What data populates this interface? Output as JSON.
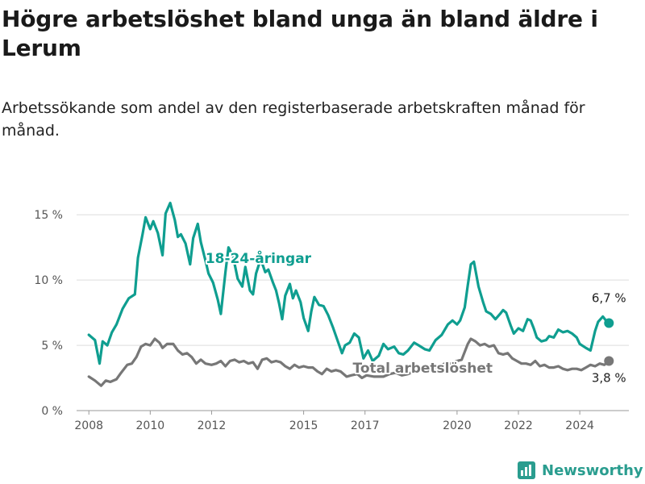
{
  "header": {
    "title": "Högre arbetslöshet bland unga än bland äldre i Lerum",
    "subtitle": "Arbetssökande som andel av den registerbaserade arbetskraften månad för månad."
  },
  "colors": {
    "youth": "#0f9e90",
    "total": "#777777",
    "grid": "#dddddd",
    "axis": "#555555"
  },
  "logo": {
    "text": "Newsworthy",
    "icon": "bar-chart-icon"
  },
  "chart_data": {
    "type": "line",
    "x_unit": "year (decimal)",
    "xlim": [
      2007.6,
      2025.6
    ],
    "ylim": [
      0,
      16
    ],
    "yticks": [
      0,
      5,
      10,
      15
    ],
    "ytick_labels": [
      "0 %",
      "5 %",
      "10 %",
      "15 %"
    ],
    "xticks": [
      2008,
      2010,
      2012,
      2015,
      2017,
      2020,
      2022,
      2024
    ],
    "xtick_labels": [
      "2008",
      "2010",
      "2012",
      "2015",
      "2017",
      "2020",
      "2022",
      "2024"
    ],
    "grid": true,
    "series": [
      {
        "name": "18-24-åringar",
        "end_label": "6,7 %",
        "points": [
          [
            2008.0,
            5.8
          ],
          [
            2008.2,
            5.4
          ],
          [
            2008.35,
            3.6
          ],
          [
            2008.45,
            5.3
          ],
          [
            2008.6,
            5.0
          ],
          [
            2008.75,
            6.0
          ],
          [
            2008.9,
            6.6
          ],
          [
            2009.1,
            7.8
          ],
          [
            2009.3,
            8.6
          ],
          [
            2009.5,
            8.9
          ],
          [
            2009.6,
            11.7
          ],
          [
            2009.75,
            13.5
          ],
          [
            2009.85,
            14.8
          ],
          [
            2010.0,
            13.9
          ],
          [
            2010.1,
            14.5
          ],
          [
            2010.25,
            13.6
          ],
          [
            2010.4,
            11.9
          ],
          [
            2010.5,
            15.1
          ],
          [
            2010.65,
            15.9
          ],
          [
            2010.8,
            14.6
          ],
          [
            2010.9,
            13.3
          ],
          [
            2011.0,
            13.5
          ],
          [
            2011.15,
            12.8
          ],
          [
            2011.3,
            11.2
          ],
          [
            2011.4,
            13.2
          ],
          [
            2011.55,
            14.3
          ],
          [
            2011.65,
            12.9
          ],
          [
            2011.8,
            11.5
          ],
          [
            2011.9,
            10.5
          ],
          [
            2012.05,
            9.8
          ],
          [
            2012.2,
            8.5
          ],
          [
            2012.3,
            7.4
          ],
          [
            2012.45,
            10.6
          ],
          [
            2012.55,
            12.5
          ],
          [
            2012.7,
            11.8
          ],
          [
            2012.85,
            10.1
          ],
          [
            2013.0,
            9.5
          ],
          [
            2013.1,
            11.0
          ],
          [
            2013.25,
            9.2
          ],
          [
            2013.35,
            8.9
          ],
          [
            2013.45,
            10.5
          ],
          [
            2013.6,
            11.6
          ],
          [
            2013.75,
            10.6
          ],
          [
            2013.85,
            10.8
          ],
          [
            2014.0,
            9.8
          ],
          [
            2014.1,
            9.2
          ],
          [
            2014.2,
            8.2
          ],
          [
            2014.3,
            7.0
          ],
          [
            2014.4,
            8.8
          ],
          [
            2014.55,
            9.7
          ],
          [
            2014.65,
            8.6
          ],
          [
            2014.75,
            9.2
          ],
          [
            2014.9,
            8.3
          ],
          [
            2015.0,
            7.1
          ],
          [
            2015.15,
            6.1
          ],
          [
            2015.25,
            7.6
          ],
          [
            2015.35,
            8.7
          ],
          [
            2015.5,
            8.1
          ],
          [
            2015.65,
            8.0
          ],
          [
            2015.8,
            7.3
          ],
          [
            2015.95,
            6.4
          ],
          [
            2016.1,
            5.4
          ],
          [
            2016.25,
            4.4
          ],
          [
            2016.35,
            5.0
          ],
          [
            2016.5,
            5.2
          ],
          [
            2016.65,
            5.9
          ],
          [
            2016.8,
            5.6
          ],
          [
            2016.95,
            4.0
          ],
          [
            2017.1,
            4.6
          ],
          [
            2017.25,
            3.8
          ],
          [
            2017.45,
            4.2
          ],
          [
            2017.6,
            5.1
          ],
          [
            2017.75,
            4.7
          ],
          [
            2017.95,
            4.9
          ],
          [
            2018.1,
            4.4
          ],
          [
            2018.25,
            4.3
          ],
          [
            2018.4,
            4.6
          ],
          [
            2018.6,
            5.2
          ],
          [
            2018.75,
            5.0
          ],
          [
            2018.95,
            4.7
          ],
          [
            2019.1,
            4.6
          ],
          [
            2019.3,
            5.4
          ],
          [
            2019.5,
            5.8
          ],
          [
            2019.7,
            6.6
          ],
          [
            2019.85,
            6.9
          ],
          [
            2020.0,
            6.6
          ],
          [
            2020.1,
            6.9
          ],
          [
            2020.25,
            7.9
          ],
          [
            2020.35,
            9.6
          ],
          [
            2020.45,
            11.2
          ],
          [
            2020.55,
            11.4
          ],
          [
            2020.7,
            9.5
          ],
          [
            2020.85,
            8.3
          ],
          [
            2020.95,
            7.6
          ],
          [
            2021.1,
            7.4
          ],
          [
            2021.25,
            7.0
          ],
          [
            2021.4,
            7.4
          ],
          [
            2021.5,
            7.7
          ],
          [
            2021.6,
            7.5
          ],
          [
            2021.75,
            6.5
          ],
          [
            2021.85,
            5.9
          ],
          [
            2022.0,
            6.3
          ],
          [
            2022.15,
            6.1
          ],
          [
            2022.3,
            7.0
          ],
          [
            2022.4,
            6.9
          ],
          [
            2022.5,
            6.3
          ],
          [
            2022.6,
            5.6
          ],
          [
            2022.75,
            5.3
          ],
          [
            2022.9,
            5.4
          ],
          [
            2023.0,
            5.7
          ],
          [
            2023.15,
            5.6
          ],
          [
            2023.3,
            6.2
          ],
          [
            2023.45,
            6.0
          ],
          [
            2023.6,
            6.1
          ],
          [
            2023.75,
            5.9
          ],
          [
            2023.9,
            5.6
          ],
          [
            2024.0,
            5.1
          ],
          [
            2024.2,
            4.8
          ],
          [
            2024.35,
            4.6
          ],
          [
            2024.5,
            6.1
          ],
          [
            2024.6,
            6.8
          ],
          [
            2024.75,
            7.2
          ],
          [
            2024.85,
            6.9
          ],
          [
            2024.95,
            6.7
          ]
        ]
      },
      {
        "name": "Total arbetslöshet",
        "end_label": "3,8 %",
        "points": [
          [
            2008.0,
            2.6
          ],
          [
            2008.2,
            2.3
          ],
          [
            2008.4,
            1.9
          ],
          [
            2008.55,
            2.3
          ],
          [
            2008.7,
            2.2
          ],
          [
            2008.9,
            2.4
          ],
          [
            2009.05,
            2.9
          ],
          [
            2009.25,
            3.5
          ],
          [
            2009.4,
            3.6
          ],
          [
            2009.55,
            4.1
          ],
          [
            2009.7,
            4.9
          ],
          [
            2009.85,
            5.1
          ],
          [
            2010.0,
            5.0
          ],
          [
            2010.15,
            5.5
          ],
          [
            2010.3,
            5.2
          ],
          [
            2010.4,
            4.8
          ],
          [
            2010.55,
            5.1
          ],
          [
            2010.75,
            5.1
          ],
          [
            2010.9,
            4.6
          ],
          [
            2011.05,
            4.3
          ],
          [
            2011.2,
            4.4
          ],
          [
            2011.35,
            4.1
          ],
          [
            2011.5,
            3.6
          ],
          [
            2011.65,
            3.9
          ],
          [
            2011.8,
            3.6
          ],
          [
            2012.0,
            3.5
          ],
          [
            2012.15,
            3.6
          ],
          [
            2012.3,
            3.8
          ],
          [
            2012.45,
            3.4
          ],
          [
            2012.6,
            3.8
          ],
          [
            2012.75,
            3.9
          ],
          [
            2012.9,
            3.7
          ],
          [
            2013.05,
            3.8
          ],
          [
            2013.2,
            3.6
          ],
          [
            2013.35,
            3.7
          ],
          [
            2013.5,
            3.2
          ],
          [
            2013.65,
            3.9
          ],
          [
            2013.8,
            4.0
          ],
          [
            2013.95,
            3.7
          ],
          [
            2014.1,
            3.8
          ],
          [
            2014.25,
            3.7
          ],
          [
            2014.4,
            3.4
          ],
          [
            2014.55,
            3.2
          ],
          [
            2014.7,
            3.5
          ],
          [
            2014.85,
            3.3
          ],
          [
            2015.0,
            3.4
          ],
          [
            2015.15,
            3.3
          ],
          [
            2015.3,
            3.3
          ],
          [
            2015.45,
            3.0
          ],
          [
            2015.6,
            2.8
          ],
          [
            2015.75,
            3.2
          ],
          [
            2015.9,
            3.0
          ],
          [
            2016.05,
            3.1
          ],
          [
            2016.2,
            3.0
          ],
          [
            2016.4,
            2.6
          ],
          [
            2016.55,
            2.7
          ],
          [
            2016.75,
            2.8
          ],
          [
            2016.9,
            2.5
          ],
          [
            2017.05,
            2.7
          ],
          [
            2017.3,
            2.6
          ],
          [
            2017.6,
            2.6
          ],
          [
            2017.8,
            2.8
          ],
          [
            2018.0,
            2.9
          ],
          [
            2018.2,
            2.7
          ],
          [
            2018.4,
            2.8
          ],
          [
            2018.6,
            3.0
          ],
          [
            2018.8,
            3.1
          ],
          [
            2019.0,
            3.1
          ],
          [
            2019.2,
            3.2
          ],
          [
            2019.4,
            3.4
          ],
          [
            2019.6,
            3.6
          ],
          [
            2019.8,
            3.6
          ],
          [
            2020.0,
            3.8
          ],
          [
            2020.15,
            3.9
          ],
          [
            2020.25,
            4.5
          ],
          [
            2020.35,
            5.1
          ],
          [
            2020.45,
            5.5
          ],
          [
            2020.6,
            5.3
          ],
          [
            2020.75,
            5.0
          ],
          [
            2020.9,
            5.1
          ],
          [
            2021.05,
            4.9
          ],
          [
            2021.2,
            5.0
          ],
          [
            2021.35,
            4.4
          ],
          [
            2021.5,
            4.3
          ],
          [
            2021.65,
            4.4
          ],
          [
            2021.8,
            4.0
          ],
          [
            2021.95,
            3.8
          ],
          [
            2022.1,
            3.6
          ],
          [
            2022.25,
            3.6
          ],
          [
            2022.4,
            3.5
          ],
          [
            2022.55,
            3.8
          ],
          [
            2022.7,
            3.4
          ],
          [
            2022.85,
            3.5
          ],
          [
            2023.0,
            3.3
          ],
          [
            2023.15,
            3.3
          ],
          [
            2023.3,
            3.4
          ],
          [
            2023.45,
            3.2
          ],
          [
            2023.6,
            3.1
          ],
          [
            2023.75,
            3.2
          ],
          [
            2023.9,
            3.2
          ],
          [
            2024.05,
            3.1
          ],
          [
            2024.2,
            3.3
          ],
          [
            2024.35,
            3.5
          ],
          [
            2024.5,
            3.4
          ],
          [
            2024.65,
            3.6
          ],
          [
            2024.8,
            3.5
          ],
          [
            2024.95,
            3.8
          ]
        ]
      }
    ]
  }
}
